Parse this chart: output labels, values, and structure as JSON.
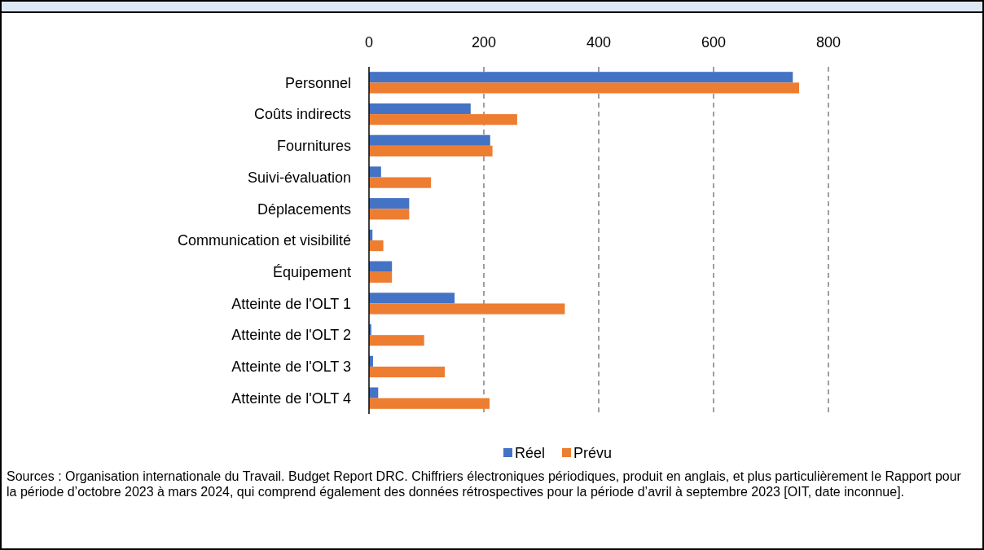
{
  "chart_data": {
    "type": "bar",
    "orientation": "horizontal",
    "categories": [
      "Personnel",
      "Coûts indirects",
      "Fournitures",
      "Suivi-évaluation",
      "Déplacements",
      "Communication et visibilité",
      "Équipement",
      "Atteinte de l'OLT 1",
      "Atteinte de l'OLT 2",
      "Atteinte de l'OLT 3",
      "Atteinte de l'OLT 4"
    ],
    "series": [
      {
        "name": "Réel",
        "color": "#4472c4",
        "values": [
          738,
          177,
          211,
          21,
          70,
          6,
          40,
          149,
          4,
          7,
          16
        ]
      },
      {
        "name": "Prévu",
        "color": "#ed7d31",
        "values": [
          749,
          258,
          215,
          108,
          70,
          25,
          40,
          341,
          96,
          132,
          210
        ]
      }
    ],
    "xlim": [
      0,
      800
    ],
    "xticks": [
      0,
      200,
      400,
      600,
      800
    ],
    "grid": "x",
    "legend": "bottom",
    "annotations": [
      "Sources : Organisation internationale du Travail. Budget Report DRC. Chiffriers électroniques périodiques, produit en anglais, et plus particulièrement le Rapport pour la période d’octobre 2023 à mars 2024, qui comprend également des données rétrospectives pour la période d’avril à septembre 2023 [OIT, date inconnue]."
    ]
  }
}
